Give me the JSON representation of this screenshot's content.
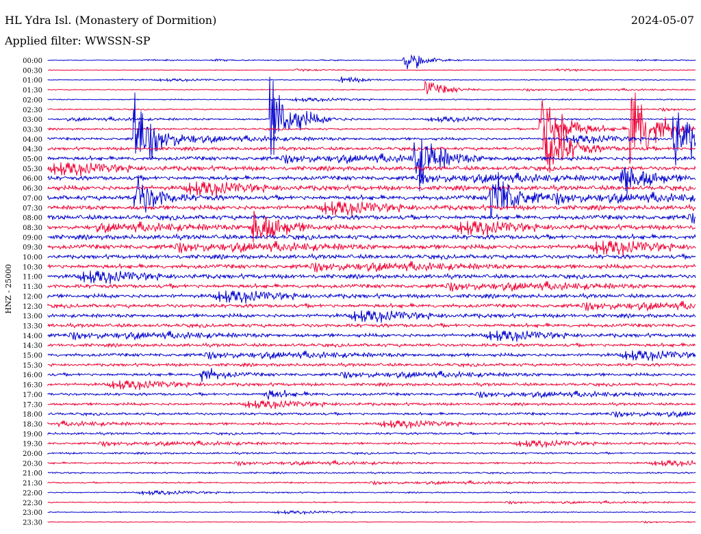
{
  "header": {
    "station": "HL Ydra Isl. (Monastery of Dormition)",
    "date": "2024-05-07",
    "filter": "Applied filter: WWSSN-SP"
  },
  "chart_data": {
    "type": "line",
    "title": "HL Ydra Isl. (Monastery of Dormition)",
    "subtitle": "Applied filter: WWSSN-SP",
    "ylabel": "HNZ - 25000",
    "date": "2024-05-07",
    "rows": [
      "00:00",
      "00:30",
      "01:00",
      "01:30",
      "02:00",
      "02:30",
      "03:00",
      "03:30",
      "04:00",
      "04:30",
      "05:00",
      "05:30",
      "06:00",
      "06:30",
      "07:00",
      "07:30",
      "08:00",
      "08:30",
      "09:00",
      "09:30",
      "10:00",
      "10:30",
      "11:00",
      "11:30",
      "12:00",
      "12:30",
      "13:00",
      "13:30",
      "14:00",
      "14:30",
      "15:00",
      "15:30",
      "16:00",
      "16:30",
      "17:00",
      "17:30",
      "18:00",
      "18:30",
      "19:00",
      "19:30",
      "20:00",
      "20:30",
      "21:00",
      "21:30",
      "22:00",
      "22:30",
      "23:00",
      "23:30"
    ],
    "row_colors": [
      "#0000cc",
      "#ee0033"
    ],
    "noise_levels": [
      0.4,
      0.4,
      0.5,
      0.6,
      0.7,
      0.8,
      1.0,
      1.2,
      1.6,
      2.0,
      2.4,
      2.6,
      2.6,
      2.8,
      2.8,
      2.8,
      2.8,
      2.8,
      2.8,
      2.8,
      2.6,
      2.6,
      2.5,
      2.4,
      2.4,
      2.3,
      2.3,
      2.2,
      2.1,
      2.0,
      2.0,
      1.9,
      1.8,
      1.8,
      1.7,
      1.6,
      1.6,
      1.5,
      1.4,
      1.3,
      1.2,
      1.1,
      1.0,
      0.9,
      0.8,
      0.7,
      0.6,
      0.5
    ],
    "events": [
      {
        "time": "00:00",
        "minute": 16.5,
        "amplitude": 14
      },
      {
        "time": "01:00",
        "minute": 13.5,
        "amplitude": 6
      },
      {
        "time": "01:30",
        "minute": 17.5,
        "amplitude": 12
      },
      {
        "time": "03:00",
        "minute": 10.3,
        "amplitude": 60
      },
      {
        "time": "03:30",
        "minute": 22.8,
        "amplitude": 70
      },
      {
        "time": "03:30",
        "minute": 27.0,
        "amplitude": 80
      },
      {
        "time": "04:00",
        "minute": 4.0,
        "amplitude": 60
      },
      {
        "time": "04:00",
        "minute": 29.0,
        "amplitude": 55
      },
      {
        "time": "04:00",
        "minute": 37.5,
        "amplitude": 45
      },
      {
        "time": "04:30",
        "minute": 23.0,
        "amplitude": 50
      },
      {
        "time": "05:00",
        "minute": 17.0,
        "amplitude": 45
      },
      {
        "time": "05:00",
        "minute": 46.5,
        "amplitude": 80
      },
      {
        "time": "05:00",
        "minute": 57.5,
        "amplitude": 50
      },
      {
        "time": "05:00",
        "minute": 51.0,
        "amplitude": 35
      },
      {
        "time": "06:00",
        "minute": 26.5,
        "amplitude": 40
      },
      {
        "time": "06:30",
        "minute": 35.0,
        "amplitude": 45
      },
      {
        "time": "06:30",
        "minute": 39.0,
        "amplitude": 40
      },
      {
        "time": "07:00",
        "minute": 20.5,
        "amplitude": 50
      },
      {
        "time": "07:00",
        "minute": 4.0,
        "amplitude": 35
      },
      {
        "time": "07:00",
        "minute": 62.0,
        "amplitude": 30
      },
      {
        "time": "07:30",
        "minute": 48.5,
        "amplitude": 20
      },
      {
        "time": "08:00",
        "minute": 31.0,
        "amplitude": 25
      },
      {
        "time": "08:30",
        "minute": 9.5,
        "amplitude": 40
      },
      {
        "time": "09:30",
        "minute": 43.0,
        "amplitude": 20
      },
      {
        "time": "11:00",
        "minute": 43.5,
        "amplitude": 45
      },
      {
        "time": "16:00",
        "minute": 7.0,
        "amplitude": 12
      },
      {
        "time": "17:00",
        "minute": 10.0,
        "amplitude": 8
      },
      {
        "time": "18:00",
        "minute": 47.0,
        "amplitude": 14
      },
      {
        "time": "18:00",
        "minute": 51.5,
        "amplitude": 12
      }
    ]
  }
}
